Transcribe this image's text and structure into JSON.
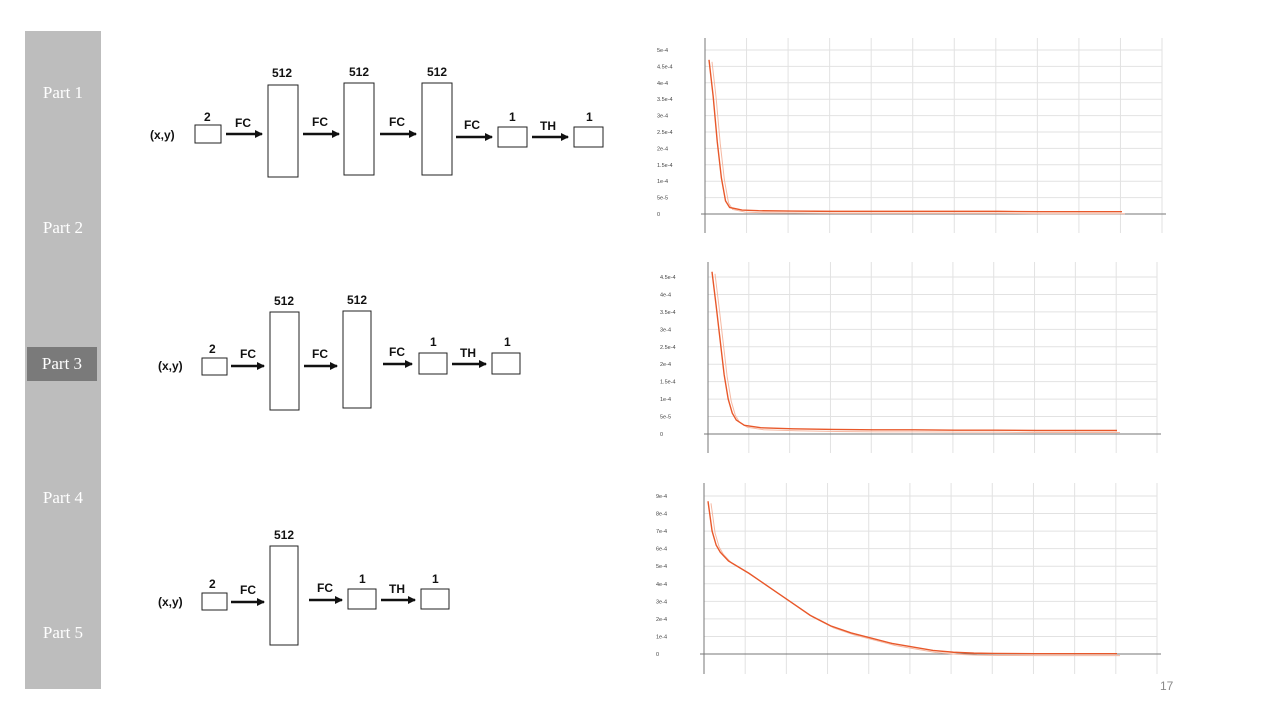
{
  "sidebar": {
    "items": [
      {
        "label": "Part 1",
        "active": false
      },
      {
        "label": "Part 2",
        "active": false
      },
      {
        "label": "Part 3",
        "active": true
      },
      {
        "label": "Part 4",
        "active": false
      },
      {
        "label": "Part 5",
        "active": false
      }
    ]
  },
  "page_number": "17",
  "diagrams": [
    {
      "input": "(x,y)",
      "dims": [
        "2",
        "512",
        "512",
        "512",
        "1",
        "1"
      ],
      "ops": [
        "FC",
        "FC",
        "FC",
        "FC",
        "TH"
      ]
    },
    {
      "input": "(x,y)",
      "dims": [
        "2",
        "512",
        "512",
        "1",
        "1"
      ],
      "ops": [
        "FC",
        "FC",
        "FC",
        "TH"
      ]
    },
    {
      "input": "(x,y)",
      "dims": [
        "2",
        "512",
        "1",
        "1"
      ],
      "ops": [
        "FC",
        "FC",
        "TH"
      ]
    }
  ],
  "colors": {
    "sidebar": "#bdbdbd",
    "active_item": "#7a7a7a",
    "curve": "#e8582a",
    "curve_shadow": "#f5b9a3"
  },
  "chart_data": [
    {
      "type": "line",
      "ylim": [
        0,
        0.0005
      ],
      "yticks": [
        "0",
        "5e-5",
        "1e-4",
        "1.5e-4",
        "2e-4",
        "2.5e-4",
        "3e-4",
        "3.5e-4",
        "4e-4",
        "4.5e-4",
        "5e-4"
      ],
      "series": [
        {
          "x": [
            0,
            1,
            2,
            3,
            4,
            5,
            8,
            12,
            20,
            30,
            40,
            50,
            60,
            70,
            80,
            90,
            100
          ],
          "y": [
            0.00047,
            0.00036,
            0.00022,
            0.00011,
            4e-05,
            2e-05,
            1.2e-05,
            1e-05,
            9e-06,
            8e-06,
            8e-06,
            8e-06,
            8e-06,
            8e-06,
            7e-06,
            7e-06,
            7e-06
          ]
        }
      ],
      "grid": true
    },
    {
      "type": "line",
      "ylim": [
        0,
        0.00045
      ],
      "yticks": [
        "0",
        "5e-5",
        "1e-4",
        "1.5e-4",
        "2e-4",
        "2.5e-4",
        "3e-4",
        "3.5e-4",
        "4e-4",
        "4.5e-4"
      ],
      "series": [
        {
          "x": [
            0,
            1,
            2,
            3,
            4,
            5,
            6,
            8,
            12,
            20,
            30,
            40,
            50,
            60,
            70,
            80,
            90,
            100
          ],
          "y": [
            0.000465,
            0.00037,
            0.00027,
            0.00017,
            0.0001,
            6e-05,
            4e-05,
            2.5e-05,
            1.8e-05,
            1.5e-05,
            1.3e-05,
            1.2e-05,
            1.2e-05,
            1.1e-05,
            1.1e-05,
            1e-05,
            1e-05,
            1e-05
          ]
        }
      ],
      "grid": true
    },
    {
      "type": "line",
      "ylim": [
        0,
        0.0009
      ],
      "yticks": [
        "0",
        "1e-4",
        "2e-4",
        "3e-4",
        "4e-4",
        "5e-4",
        "6e-4",
        "7e-4",
        "8e-4",
        "9e-4"
      ],
      "series": [
        {
          "x": [
            0,
            1,
            2,
            3,
            5,
            10,
            15,
            20,
            25,
            30,
            35,
            40,
            45,
            50,
            55,
            60,
            65,
            70,
            80,
            90,
            100
          ],
          "y": [
            0.00087,
            0.0007,
            0.00062,
            0.00058,
            0.00053,
            0.00046,
            0.00038,
            0.0003,
            0.00022,
            0.00016,
            0.00012,
            9e-05,
            6e-05,
            4e-05,
            2e-05,
            1e-05,
            5e-06,
            3e-06,
            2e-06,
            2e-06,
            2e-06
          ]
        }
      ],
      "grid": true
    }
  ]
}
